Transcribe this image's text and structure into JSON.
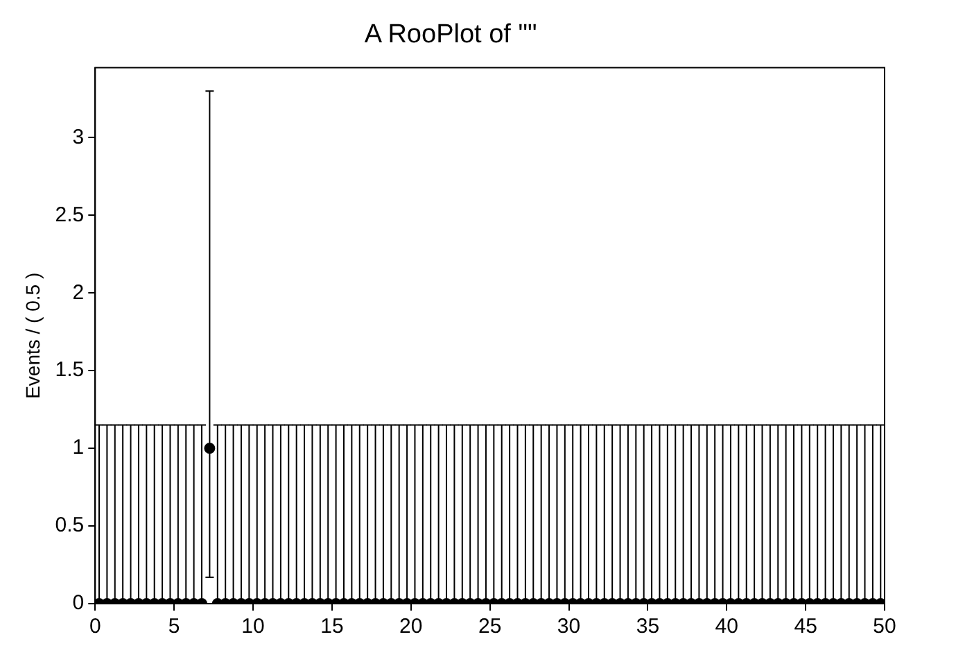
{
  "chart_data": {
    "type": "scatter",
    "title": "A RooPlot of \"\"",
    "ylabel": "Events / ( 0.5 )",
    "x": [
      0.25,
      0.75,
      1.25,
      1.75,
      2.25,
      2.75,
      3.25,
      3.75,
      4.25,
      4.75,
      5.25,
      5.75,
      6.25,
      6.75,
      7.25,
      7.75,
      8.25,
      8.75,
      9.25,
      9.75,
      10.25,
      10.75,
      11.25,
      11.75,
      12.25,
      12.75,
      13.25,
      13.75,
      14.25,
      14.75,
      15.25,
      15.75,
      16.25,
      16.75,
      17.25,
      17.75,
      18.25,
      18.75,
      19.25,
      19.75,
      20.25,
      20.75,
      21.25,
      21.75,
      22.25,
      22.75,
      23.25,
      23.75,
      24.25,
      24.75,
      25.25,
      25.75,
      26.25,
      26.75,
      27.25,
      27.75,
      28.25,
      28.75,
      29.25,
      29.75,
      30.25,
      30.75,
      31.25,
      31.75,
      32.25,
      32.75,
      33.25,
      33.75,
      34.25,
      34.75,
      35.25,
      35.75,
      36.25,
      36.75,
      37.25,
      37.75,
      38.25,
      38.75,
      39.25,
      39.75,
      40.25,
      40.75,
      41.25,
      41.75,
      42.25,
      42.75,
      43.25,
      43.75,
      44.25,
      44.75,
      45.25,
      45.75,
      46.25,
      46.75,
      47.25,
      47.75,
      48.25,
      48.75,
      49.25,
      49.75
    ],
    "values": [
      0,
      0,
      0,
      0,
      0,
      0,
      0,
      0,
      0,
      0,
      0,
      0,
      0,
      0,
      1,
      0,
      0,
      0,
      0,
      0,
      0,
      0,
      0,
      0,
      0,
      0,
      0,
      0,
      0,
      0,
      0,
      0,
      0,
      0,
      0,
      0,
      0,
      0,
      0,
      0,
      0,
      0,
      0,
      0,
      0,
      0,
      0,
      0,
      0,
      0,
      0,
      0,
      0,
      0,
      0,
      0,
      0,
      0,
      0,
      0,
      0,
      0,
      0,
      0,
      0,
      0,
      0,
      0,
      0,
      0,
      0,
      0,
      0,
      0,
      0,
      0,
      0,
      0,
      0,
      0,
      0,
      0,
      0,
      0,
      0,
      0,
      0,
      0,
      0,
      0,
      0,
      0,
      0,
      0,
      0,
      0,
      0,
      0,
      0,
      0
    ],
    "errors": [
      [
        0,
        1.15
      ],
      [
        0,
        1.15
      ],
      [
        0,
        1.15
      ],
      [
        0,
        1.15
      ],
      [
        0,
        1.15
      ],
      [
        0,
        1.15
      ],
      [
        0,
        1.15
      ],
      [
        0,
        1.15
      ],
      [
        0,
        1.15
      ],
      [
        0,
        1.15
      ],
      [
        0,
        1.15
      ],
      [
        0,
        1.15
      ],
      [
        0,
        1.15
      ],
      [
        0,
        1.15
      ],
      [
        0.17,
        3.3
      ],
      [
        0,
        1.15
      ],
      [
        0,
        1.15
      ],
      [
        0,
        1.15
      ],
      [
        0,
        1.15
      ],
      [
        0,
        1.15
      ],
      [
        0,
        1.15
      ],
      [
        0,
        1.15
      ],
      [
        0,
        1.15
      ],
      [
        0,
        1.15
      ],
      [
        0,
        1.15
      ],
      [
        0,
        1.15
      ],
      [
        0,
        1.15
      ],
      [
        0,
        1.15
      ],
      [
        0,
        1.15
      ],
      [
        0,
        1.15
      ],
      [
        0,
        1.15
      ],
      [
        0,
        1.15
      ],
      [
        0,
        1.15
      ],
      [
        0,
        1.15
      ],
      [
        0,
        1.15
      ],
      [
        0,
        1.15
      ],
      [
        0,
        1.15
      ],
      [
        0,
        1.15
      ],
      [
        0,
        1.15
      ],
      [
        0,
        1.15
      ],
      [
        0,
        1.15
      ],
      [
        0,
        1.15
      ],
      [
        0,
        1.15
      ],
      [
        0,
        1.15
      ],
      [
        0,
        1.15
      ],
      [
        0,
        1.15
      ],
      [
        0,
        1.15
      ],
      [
        0,
        1.15
      ],
      [
        0,
        1.15
      ],
      [
        0,
        1.15
      ],
      [
        0,
        1.15
      ],
      [
        0,
        1.15
      ],
      [
        0,
        1.15
      ],
      [
        0,
        1.15
      ],
      [
        0,
        1.15
      ],
      [
        0,
        1.15
      ],
      [
        0,
        1.15
      ],
      [
        0,
        1.15
      ],
      [
        0,
        1.15
      ],
      [
        0,
        1.15
      ],
      [
        0,
        1.15
      ],
      [
        0,
        1.15
      ],
      [
        0,
        1.15
      ],
      [
        0,
        1.15
      ],
      [
        0,
        1.15
      ],
      [
        0,
        1.15
      ],
      [
        0,
        1.15
      ],
      [
        0,
        1.15
      ],
      [
        0,
        1.15
      ],
      [
        0,
        1.15
      ],
      [
        0,
        1.15
      ],
      [
        0,
        1.15
      ],
      [
        0,
        1.15
      ],
      [
        0,
        1.15
      ],
      [
        0,
        1.15
      ],
      [
        0,
        1.15
      ],
      [
        0,
        1.15
      ],
      [
        0,
        1.15
      ],
      [
        0,
        1.15
      ],
      [
        0,
        1.15
      ],
      [
        0,
        1.15
      ],
      [
        0,
        1.15
      ],
      [
        0,
        1.15
      ],
      [
        0,
        1.15
      ],
      [
        0,
        1.15
      ],
      [
        0,
        1.15
      ],
      [
        0,
        1.15
      ],
      [
        0,
        1.15
      ],
      [
        0,
        1.15
      ],
      [
        0,
        1.15
      ],
      [
        0,
        1.15
      ],
      [
        0,
        1.15
      ],
      [
        0,
        1.15
      ],
      [
        0,
        1.15
      ],
      [
        0,
        1.15
      ],
      [
        0,
        1.15
      ],
      [
        0,
        1.15
      ],
      [
        0,
        1.15
      ],
      [
        0,
        1.15
      ],
      [
        0,
        1.15
      ]
    ],
    "color": "#000000",
    "marker": "circle",
    "grid": false,
    "legend": false,
    "xlim": [
      0,
      50
    ],
    "xticks": [
      0,
      5,
      10,
      15,
      20,
      25,
      30,
      35,
      40,
      45,
      50
    ],
    "ylim": [
      0,
      3.45
    ],
    "yticks": [
      0,
      0.5,
      1,
      1.5,
      2,
      2.5,
      3
    ]
  }
}
